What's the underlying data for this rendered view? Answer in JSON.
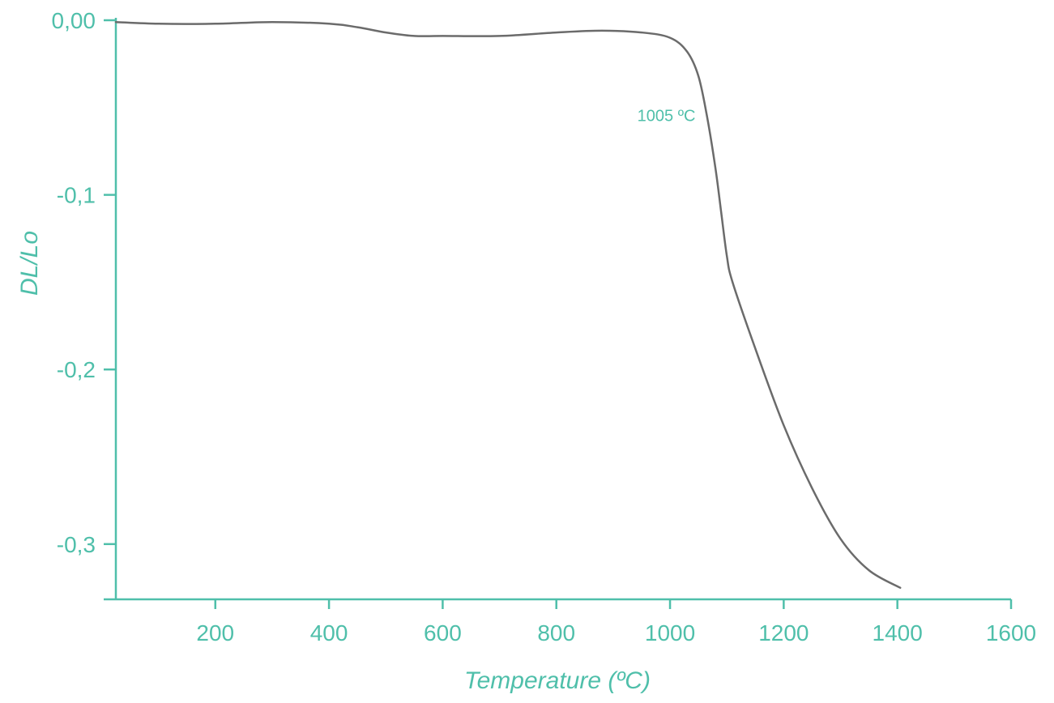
{
  "chart_data": {
    "type": "line",
    "xlabel": "Temperature (ºC)",
    "ylabel": "DL/Lo",
    "xlim": [
      25,
      1600
    ],
    "ylim": [
      -0.327,
      0.0
    ],
    "x_ticks": [
      200,
      400,
      600,
      800,
      1000,
      1200,
      1400,
      1600
    ],
    "x_tick_labels": [
      "200",
      "400",
      "600",
      "800",
      "1000",
      "1200",
      "1400",
      "1600"
    ],
    "y_ticks": [
      0.0,
      -0.1,
      -0.2,
      -0.3
    ],
    "y_tick_labels": [
      "0,00",
      "-0,1",
      "-0,2",
      "-0,3"
    ],
    "grid": false,
    "annotations": [
      {
        "text": "1005 ºC",
        "x": 1005,
        "y": -0.055
      }
    ],
    "colors": {
      "axis": "#4fbfaa",
      "series": "#6b6b6b"
    },
    "series": [
      {
        "name": "",
        "x": [
          25,
          100,
          200,
          300,
          400,
          450,
          500,
          550,
          600,
          700,
          800,
          880,
          950,
          1000,
          1030,
          1050,
          1065,
          1080,
          1090,
          1100,
          1110,
          1150,
          1200,
          1250,
          1300,
          1350,
          1405
        ],
        "y": [
          -0.001,
          -0.002,
          -0.002,
          -0.001,
          -0.002,
          -0.004,
          -0.007,
          -0.009,
          -0.009,
          -0.009,
          -0.007,
          -0.006,
          -0.007,
          -0.01,
          -0.018,
          -0.032,
          -0.055,
          -0.085,
          -0.11,
          -0.135,
          -0.15,
          -0.188,
          -0.232,
          -0.268,
          -0.297,
          -0.315,
          -0.325
        ]
      }
    ]
  }
}
